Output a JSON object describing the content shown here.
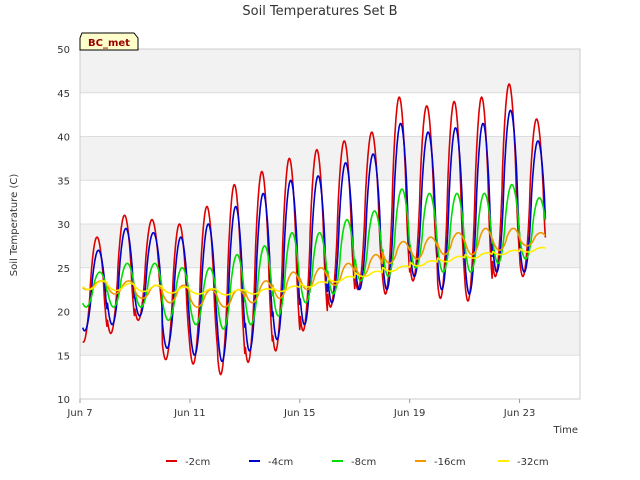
{
  "chart_data": {
    "type": "line",
    "title": "Soil Temperatures Set B",
    "xlabel": "Time",
    "ylabel": "Soil Temperature (C)",
    "badge": "BC_met",
    "x_range": [
      "Jun 7",
      "Jun 25"
    ],
    "ylim": [
      10,
      50
    ],
    "y_ticks": [
      10,
      15,
      20,
      25,
      30,
      35,
      40,
      45,
      50
    ],
    "x_ticks": [
      {
        "day": 0,
        "label": "Jun 7"
      },
      {
        "day": 4,
        "label": "Jun 11"
      },
      {
        "day": 8,
        "label": "Jun 15"
      },
      {
        "day": 12,
        "label": "Jun 19"
      },
      {
        "day": 16,
        "label": "Jun 23"
      }
    ],
    "grid": true,
    "legend_position": "bottom",
    "series": [
      {
        "name": "-2cm",
        "color": "#dd0000",
        "daily_max": [
          28.5,
          31.0,
          30.5,
          30.0,
          32.0,
          34.5,
          36.0,
          37.5,
          38.5,
          39.5,
          40.5,
          44.5,
          43.5,
          44.0,
          44.5,
          46.0,
          42.0
        ],
        "daily_min": [
          16.5,
          17.5,
          19.0,
          14.5,
          14.0,
          12.8,
          14.2,
          15.5,
          17.8,
          20.5,
          22.5,
          22.0,
          23.5,
          21.5,
          21.2,
          24.0,
          24.0
        ]
      },
      {
        "name": "-4cm",
        "color": "#0000cc",
        "daily_max": [
          27.0,
          29.5,
          29.0,
          28.5,
          30.0,
          32.0,
          33.5,
          35.0,
          35.5,
          37.0,
          38.0,
          41.5,
          40.5,
          41.0,
          41.5,
          43.0,
          39.5
        ],
        "daily_min": [
          17.8,
          18.5,
          19.5,
          15.8,
          15.0,
          14.3,
          15.5,
          16.8,
          18.5,
          21.0,
          22.5,
          22.5,
          24.0,
          22.5,
          22.0,
          24.5,
          24.5
        ]
      },
      {
        "name": "-8cm",
        "color": "#00dd00",
        "daily_max": [
          24.5,
          25.5,
          25.5,
          25.0,
          25.0,
          26.5,
          27.5,
          29.0,
          29.0,
          30.5,
          31.5,
          34.0,
          33.5,
          33.5,
          33.5,
          34.5,
          33.0
        ],
        "daily_min": [
          20.5,
          20.5,
          20.5,
          19.0,
          18.5,
          18.0,
          18.5,
          19.5,
          21.0,
          22.0,
          23.5,
          24.0,
          25.0,
          24.5,
          24.5,
          25.5,
          26.0
        ]
      },
      {
        "name": "-16cm",
        "color": "#ee9900",
        "daily_max": [
          23.5,
          23.5,
          23.0,
          23.0,
          22.5,
          22.5,
          23.5,
          24.5,
          25.0,
          25.5,
          26.5,
          28.0,
          28.5,
          29.0,
          29.5,
          29.5,
          29.0
        ],
        "daily_min": [
          22.5,
          22.0,
          21.5,
          21.0,
          20.5,
          20.5,
          21.0,
          21.5,
          22.5,
          23.0,
          24.0,
          25.5,
          26.0,
          26.5,
          26.5,
          27.0,
          27.5
        ]
      },
      {
        "name": "-32cm",
        "color": "#ffee00",
        "daily_max": [
          23.5,
          23.2,
          23.0,
          22.8,
          22.6,
          22.5,
          22.6,
          22.9,
          23.4,
          24.0,
          24.6,
          25.2,
          25.8,
          26.3,
          26.7,
          27.0,
          27.3
        ],
        "daily_min": [
          22.5,
          22.4,
          22.3,
          22.1,
          22.0,
          21.9,
          22.0,
          22.3,
          22.8,
          23.4,
          24.0,
          24.6,
          25.2,
          25.7,
          26.1,
          26.5,
          26.8
        ]
      }
    ]
  }
}
